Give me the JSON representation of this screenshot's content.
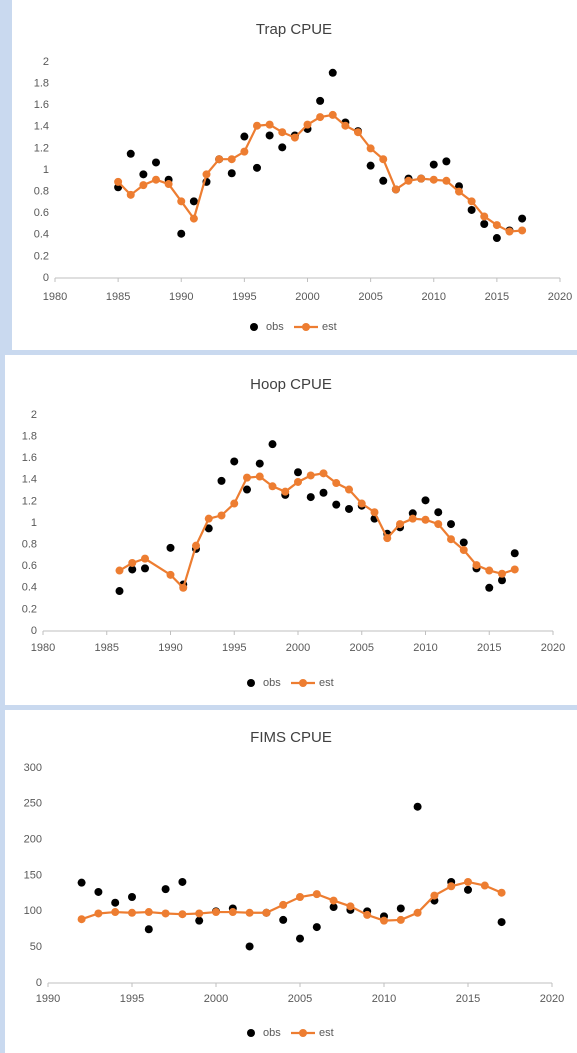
{
  "chart_data": [
    {
      "type": "line",
      "title": "Trap CPUE",
      "legend": "bottom",
      "x": [
        1985,
        1986,
        1987,
        1988,
        1989,
        1990,
        1991,
        1992,
        1993,
        1994,
        1995,
        1996,
        1997,
        1998,
        1999,
        2000,
        2001,
        2002,
        2003,
        2004,
        2005,
        2006,
        2007,
        2008,
        2009,
        2010,
        2011,
        2012,
        2013,
        2014,
        2015,
        2016,
        2017
      ],
      "series": [
        {
          "name": "obs",
          "color": "#000000",
          "line": false,
          "values": [
            0.84,
            1.15,
            0.96,
            1.07,
            0.91,
            0.41,
            0.71,
            0.89,
            1.1,
            0.97,
            1.31,
            1.02,
            1.32,
            1.21,
            1.32,
            1.38,
            1.64,
            1.9,
            1.44,
            1.36,
            1.04,
            0.9,
            0.82,
            0.92,
            0.92,
            1.05,
            1.08,
            0.85,
            0.63,
            0.5,
            0.37,
            0.44,
            0.55
          ]
        },
        {
          "name": "est",
          "color": "#ed7d31",
          "line": true,
          "values": [
            0.89,
            0.77,
            0.86,
            0.91,
            0.87,
            0.71,
            0.55,
            0.96,
            1.1,
            1.1,
            1.17,
            1.41,
            1.42,
            1.35,
            1.3,
            1.42,
            1.49,
            1.51,
            1.41,
            1.35,
            1.2,
            1.1,
            0.82,
            0.9,
            0.92,
            0.91,
            0.9,
            0.8,
            0.71,
            0.57,
            0.49,
            0.43,
            0.44
          ]
        }
      ],
      "xlim": [
        1980,
        2020
      ],
      "xticks": [
        1980,
        1985,
        1990,
        1995,
        2000,
        2005,
        2010,
        2015,
        2020
      ],
      "ylim": [
        0,
        2
      ],
      "yticks": [
        0,
        0.2,
        0.4,
        0.6,
        0.8,
        1,
        1.2,
        1.4,
        1.6,
        1.8,
        2
      ]
    },
    {
      "type": "line",
      "title": "Hoop CPUE",
      "legend": "bottom",
      "x": [
        1986,
        1987,
        1988,
        1990,
        1991,
        1992,
        1993,
        1994,
        1995,
        1996,
        1997,
        1998,
        1999,
        2000,
        2001,
        2002,
        2003,
        2004,
        2005,
        2006,
        2007,
        2008,
        2009,
        2010,
        2011,
        2012,
        2013,
        2014,
        2015,
        2016,
        2017
      ],
      "series": [
        {
          "name": "obs",
          "color": "#000000",
          "line": false,
          "values": [
            0.37,
            0.57,
            0.58,
            0.77,
            0.43,
            0.76,
            0.95,
            1.39,
            1.57,
            1.31,
            1.55,
            1.73,
            1.26,
            1.47,
            1.24,
            1.28,
            1.17,
            1.13,
            1.16,
            1.04,
            0.9,
            0.96,
            1.09,
            1.21,
            1.1,
            0.99,
            0.82,
            0.58,
            0.4,
            0.47,
            0.72
          ]
        },
        {
          "name": "est",
          "color": "#ed7d31",
          "line": true,
          "values": [
            0.56,
            0.63,
            0.67,
            0.52,
            0.4,
            0.79,
            1.04,
            1.07,
            1.18,
            1.42,
            1.43,
            1.34,
            1.29,
            1.38,
            1.44,
            1.46,
            1.37,
            1.31,
            1.18,
            1.1,
            0.86,
            0.99,
            1.04,
            1.03,
            0.99,
            0.85,
            0.75,
            0.61,
            0.56,
            0.53,
            0.57
          ]
        }
      ],
      "xlim": [
        1980,
        2020
      ],
      "xticks": [
        1980,
        1985,
        1990,
        1995,
        2000,
        2005,
        2010,
        2015,
        2020
      ],
      "ylim": [
        0,
        2
      ],
      "yticks": [
        0,
        0.2,
        0.4,
        0.6,
        0.8,
        1,
        1.2,
        1.4,
        1.6,
        1.8,
        2
      ]
    },
    {
      "type": "line",
      "title": "FIMS CPUE",
      "legend": "bottom",
      "x": [
        1992,
        1993,
        1994,
        1995,
        1996,
        1997,
        1998,
        1999,
        2000,
        2001,
        2002,
        2003,
        2004,
        2005,
        2006,
        2007,
        2008,
        2009,
        2010,
        2011,
        2012,
        2013,
        2014,
        2015,
        2016,
        2017
      ],
      "series": [
        {
          "name": "obs",
          "color": "#000000",
          "line": false,
          "values": [
            140,
            127,
            112,
            120,
            75,
            131,
            141,
            87,
            100,
            104,
            51,
            98,
            88,
            62,
            78,
            106,
            102,
            100,
            93,
            104,
            246,
            115,
            141,
            130,
            null,
            85
          ]
        },
        {
          "name": "est",
          "color": "#ed7d31",
          "line": true,
          "values": [
            89,
            97,
            99,
            98,
            99,
            97,
            96,
            97,
            99,
            99,
            98,
            98,
            109,
            120,
            124,
            115,
            107,
            95,
            87,
            88,
            98,
            122,
            135,
            141,
            136,
            126
          ]
        }
      ],
      "xlim": [
        1990,
        2020
      ],
      "xticks": [
        1990,
        1995,
        2000,
        2005,
        2010,
        2015,
        2020
      ],
      "ylim": [
        0,
        300
      ],
      "yticks": [
        0,
        50,
        100,
        150,
        200,
        250,
        300
      ]
    }
  ]
}
